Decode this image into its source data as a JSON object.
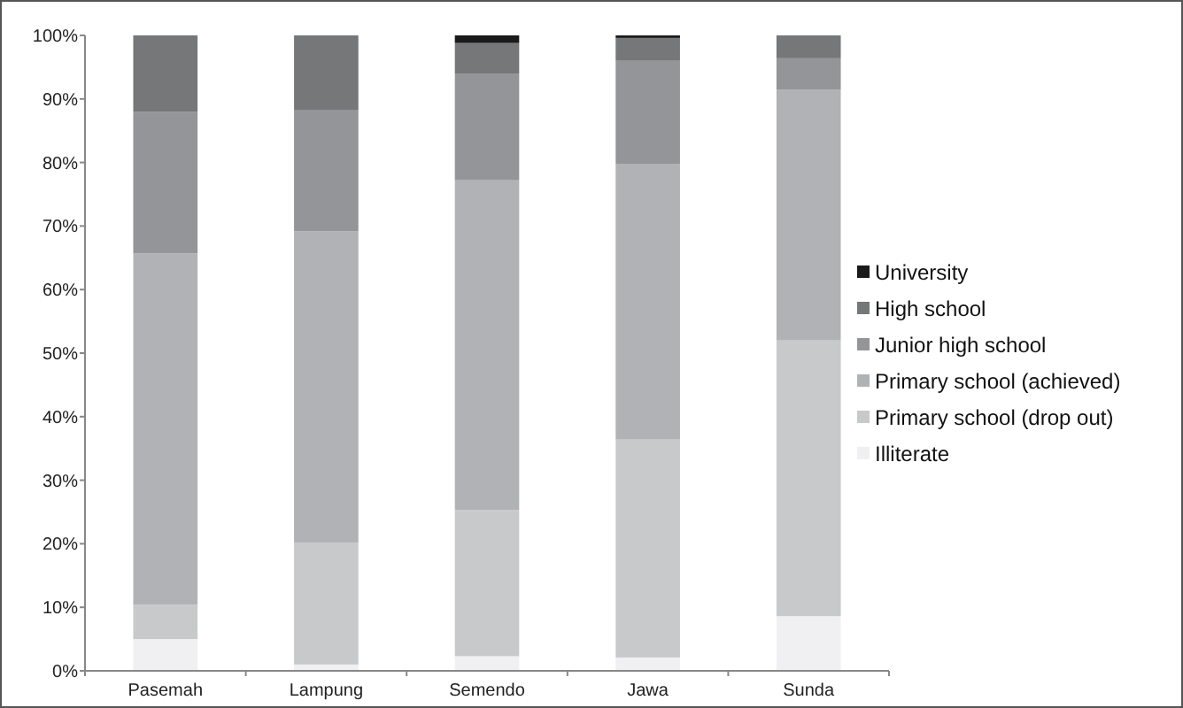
{
  "chart_data": {
    "type": "bar",
    "stacked": true,
    "categories": [
      "Pasemah",
      "Lampung",
      "Semendo",
      "Jawa",
      "Sunda"
    ],
    "series": [
      {
        "name": "Illiterate",
        "color": "#f0f0f2",
        "values": [
          5,
          1,
          2.3,
          2.1,
          8.6
        ]
      },
      {
        "name": "Primary school (drop out)",
        "color": "#c8c9cb",
        "values": [
          5.4,
          19.2,
          23,
          34.3,
          43.4
        ]
      },
      {
        "name": "Primary school (achieved)",
        "color": "#b1b2b5",
        "values": [
          55.3,
          49,
          51.9,
          43.4,
          39.5
        ]
      },
      {
        "name": "Junior high school",
        "color": "#949598",
        "values": [
          22.3,
          19,
          16.8,
          16.2,
          4.9
        ]
      },
      {
        "name": "High school",
        "color": "#767779",
        "values": [
          12,
          11.8,
          4.8,
          3.6,
          3.6
        ]
      },
      {
        "name": "University",
        "color": "#1a1a1a",
        "values": [
          0,
          0,
          1.2,
          0.4,
          0
        ]
      }
    ],
    "ylim": [
      0,
      100
    ],
    "yticks": [
      {
        "value": 0,
        "label": "0%"
      },
      {
        "value": 10,
        "label": "10%"
      },
      {
        "value": 20,
        "label": "20%"
      },
      {
        "value": 30,
        "label": "30%"
      },
      {
        "value": 40,
        "label": "40%"
      },
      {
        "value": 50,
        "label": "50%"
      },
      {
        "value": 60,
        "label": "60%"
      },
      {
        "value": 70,
        "label": "70%"
      },
      {
        "value": 80,
        "label": "80%"
      },
      {
        "value": 90,
        "label": "90%"
      },
      {
        "value": 100,
        "label": "100%"
      }
    ],
    "grid": false,
    "legend": "right"
  }
}
